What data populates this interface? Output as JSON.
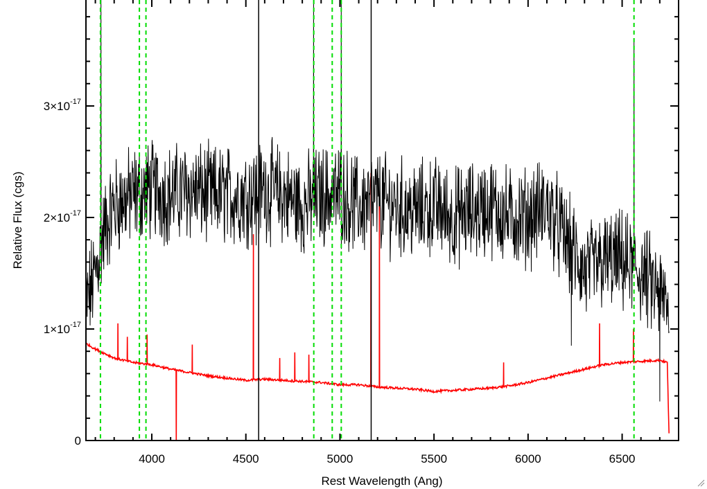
{
  "chart_data": {
    "type": "line",
    "xlabel": "Rest Wavelength (Ang)",
    "ylabel": "Relative Flux (cgs)",
    "xlim": [
      3650,
      6800
    ],
    "ylim": [
      0,
      3.95e-17
    ],
    "x_ticks": [
      {
        "value": 4000,
        "label": "4000"
      },
      {
        "value": 4500,
        "label": "4500"
      },
      {
        "value": 5000,
        "label": "5000"
      },
      {
        "value": 5500,
        "label": "5500"
      },
      {
        "value": 6000,
        "label": "6000"
      },
      {
        "value": 6500,
        "label": "6500"
      }
    ],
    "y_ticks": [
      {
        "value": 0,
        "mantissa": "0",
        "exponent": ""
      },
      {
        "value": 1e-17,
        "mantissa": "1×10",
        "exponent": "-17"
      },
      {
        "value": 2e-17,
        "mantissa": "2×10",
        "exponent": "-17"
      },
      {
        "value": 3e-17,
        "mantissa": "3×10",
        "exponent": "-17"
      }
    ],
    "grid": false,
    "colors": {
      "observed": "#000000",
      "model": "#ff0000",
      "lines": "#00dd00",
      "markers": "#000000"
    },
    "series": [
      {
        "key": "observed",
        "style": "noisy",
        "x": [
          3650,
          3700,
          3750,
          3800,
          3900,
          4000,
          4100,
          4200,
          4300,
          4400,
          4500,
          4600,
          4700,
          4800,
          4900,
          5000,
          5100,
          5200,
          5300,
          5400,
          5500,
          5600,
          5700,
          5800,
          5900,
          6000,
          6100,
          6200,
          6300,
          6400,
          6500,
          6600,
          6700,
          6750
        ],
        "y": [
          1.2e-17,
          1.5e-17,
          1.9e-17,
          2.1e-17,
          2.2e-17,
          2.25e-17,
          2.2e-17,
          2.25e-17,
          2.2e-17,
          2.2e-17,
          2.2e-17,
          2.25e-17,
          2.2e-17,
          2.1e-17,
          2.2e-17,
          2.2e-17,
          2.1e-17,
          2.15e-17,
          2.1e-17,
          2.05e-17,
          2.1e-17,
          2e-17,
          2.05e-17,
          2.1e-17,
          2e-17,
          2e-17,
          2.1e-17,
          1.8e-17,
          1.5e-17,
          1.6e-17,
          1.6e-17,
          1.5e-17,
          1.3e-17,
          1.2e-17
        ],
        "spikes": [
          {
            "x": 3730,
            "y": 4e-17
          },
          {
            "x": 4555,
            "y": 1.75e-17
          },
          {
            "x": 4860,
            "y": 3.95e-17
          },
          {
            "x": 5007,
            "y": 3.95e-17
          },
          {
            "x": 6563,
            "y": 3.6e-17
          },
          {
            "x": 6230,
            "y": 8.5e-18
          },
          {
            "x": 6700,
            "y": 3.5e-18
          }
        ]
      },
      {
        "key": "model",
        "style": "smooth",
        "x": [
          3650,
          3700,
          3800,
          3900,
          4000,
          4100,
          4200,
          4300,
          4400,
          4500,
          4600,
          4700,
          4800,
          4900,
          5000,
          5100,
          5200,
          5300,
          5400,
          5500,
          5600,
          5700,
          5800,
          5900,
          6000,
          6100,
          6200,
          6300,
          6400,
          6500,
          6600,
          6700,
          6740,
          6750
        ],
        "y": [
          8.7e-18,
          8.2e-18,
          7.4e-18,
          7e-18,
          6.8e-18,
          6.4e-18,
          6.1e-18,
          5.8e-18,
          5.6e-18,
          5.4e-18,
          5.5e-18,
          5.4e-18,
          5.3e-18,
          5.2e-18,
          5e-18,
          5e-18,
          4.8e-18,
          4.7e-18,
          4.6e-18,
          4.4e-18,
          4.5e-18,
          4.6e-18,
          4.7e-18,
          4.9e-18,
          5.2e-18,
          5.6e-18,
          6e-18,
          6.4e-18,
          6.8e-18,
          7e-18,
          7.1e-18,
          7.2e-18,
          7e-18,
          0.0
        ],
        "spikes": [
          {
            "x": 3820,
            "y": 1.05e-17
          },
          {
            "x": 3870,
            "y": 9.3e-18
          },
          {
            "x": 3975,
            "y": 9.5e-18
          },
          {
            "x": 4130,
            "y": -5e-19
          },
          {
            "x": 4215,
            "y": 8.6e-18
          },
          {
            "x": 4540,
            "y": 1.85e-17
          },
          {
            "x": 4680,
            "y": 7.4e-18
          },
          {
            "x": 4760,
            "y": 7.9e-18
          },
          {
            "x": 4835,
            "y": 7.7e-18
          },
          {
            "x": 5165,
            "y": 2.4e-17
          },
          {
            "x": 5210,
            "y": 2.1e-17
          },
          {
            "x": 5870,
            "y": 7e-18
          },
          {
            "x": 6380,
            "y": 1.05e-17
          },
          {
            "x": 6560,
            "y": 1e-17
          }
        ]
      }
    ],
    "line_markers": [
      3727,
      3934,
      3969,
      4861,
      4959,
      5007,
      6563
    ],
    "black_markers": [
      4568,
      5166
    ]
  }
}
